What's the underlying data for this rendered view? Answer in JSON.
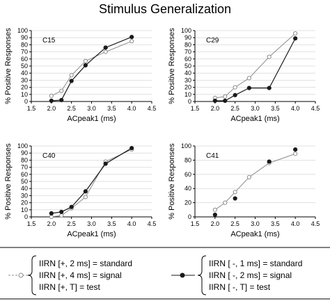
{
  "title": "Stimulus Generalization",
  "legend": {
    "open": {
      "lines": [
        "IIRN [+, 2 ms] = standard",
        "IIRN [+, 4 ms] = signal",
        "IIRN [+, T] = test"
      ],
      "color": "#8c8c8c",
      "marker": "open-circle"
    },
    "filled": {
      "lines": [
        "IIRN [ -, 1 ms] = standard",
        "IIRN [ -, 2 ms] = signal",
        "IIRN [ -, T] = test"
      ],
      "color": "#1a1a1a",
      "marker": "filled-circle"
    }
  },
  "chart_data": [
    {
      "type": "line",
      "panel_label": "C15",
      "xlabel": "ACpeak1 (ms)",
      "ylabel": "% Positive Responses",
      "xlim": [
        1.5,
        4.5
      ],
      "ylim": [
        0,
        100
      ],
      "xticks": [
        1.5,
        2.0,
        2.5,
        3.0,
        3.5,
        4.0,
        4.5
      ],
      "yticks": [
        0,
        10,
        20,
        30,
        40,
        50,
        60,
        70,
        80,
        90,
        100
      ],
      "series": [
        {
          "style": "open",
          "x": [
            2.0,
            2.25,
            2.5,
            2.85,
            3.35,
            4.0
          ],
          "y": [
            8,
            15,
            37,
            57,
            70,
            85
          ]
        },
        {
          "style": "filled",
          "x": [
            2.0,
            2.25,
            2.5,
            2.85,
            3.35,
            4.0
          ],
          "y": [
            1,
            2,
            29,
            51,
            76,
            91
          ]
        }
      ]
    },
    {
      "type": "line",
      "panel_label": "C29",
      "xlabel": "ACpeak1 (ms)",
      "ylabel": "% Positive Responses",
      "xlim": [
        1.5,
        4.5
      ],
      "ylim": [
        0,
        100
      ],
      "xticks": [
        1.5,
        2.0,
        2.5,
        3.0,
        3.5,
        4.0,
        4.5
      ],
      "yticks": [
        0,
        10,
        20,
        30,
        40,
        50,
        60,
        70,
        80,
        90,
        100
      ],
      "series": [
        {
          "style": "open",
          "x": [
            2.0,
            2.25,
            2.5,
            2.85,
            3.35,
            4.0
          ],
          "y": [
            5,
            7,
            20,
            33,
            63,
            96
          ]
        },
        {
          "style": "filled",
          "x": [
            2.0,
            2.25,
            2.5,
            2.85,
            3.35,
            4.0
          ],
          "y": [
            1,
            1,
            9,
            19,
            19,
            89
          ]
        }
      ]
    },
    {
      "type": "line",
      "panel_label": "C40",
      "xlabel": "ACpeak1 (ms)",
      "ylabel": "% Positive Responses",
      "xlim": [
        1.5,
        4.5
      ],
      "ylim": [
        0,
        100
      ],
      "xticks": [
        1.5,
        2.0,
        2.5,
        3.0,
        3.5,
        4.0,
        4.5
      ],
      "yticks": [
        0,
        10,
        20,
        30,
        40,
        50,
        60,
        70,
        80,
        90,
        100
      ],
      "series": [
        {
          "style": "open",
          "x": [
            2.0,
            2.25,
            2.5,
            2.85,
            3.35,
            4.0
          ],
          "y": [
            0,
            2,
            12,
            28,
            78,
            95
          ]
        },
        {
          "style": "filled",
          "x": [
            2.0,
            2.25,
            2.5,
            2.85,
            3.35,
            4.0
          ],
          "y": [
            5,
            7,
            14,
            36,
            75,
            97
          ]
        }
      ]
    },
    {
      "type": "line",
      "panel_label": "C41",
      "xlabel": "ACpeak1 (ms)",
      "ylabel": "% Positive Responses",
      "xlim": [
        1.5,
        4.5
      ],
      "ylim": [
        0,
        100
      ],
      "xticks": [
        1.5,
        2.0,
        2.5,
        3.0,
        3.5,
        4.0,
        4.5
      ],
      "yticks": [
        0,
        20,
        40,
        60,
        80,
        100
      ],
      "series": [
        {
          "style": "open",
          "x": [
            2.0,
            2.25,
            2.5,
            2.85,
            3.35,
            4.0
          ],
          "y": [
            10,
            20,
            35,
            56,
            76,
            89
          ]
        },
        {
          "style": "filled",
          "x": [
            2.0,
            2.5,
            3.35,
            4.0
          ],
          "y": [
            3,
            26,
            78,
            95
          ],
          "connected": false
        }
      ]
    }
  ]
}
